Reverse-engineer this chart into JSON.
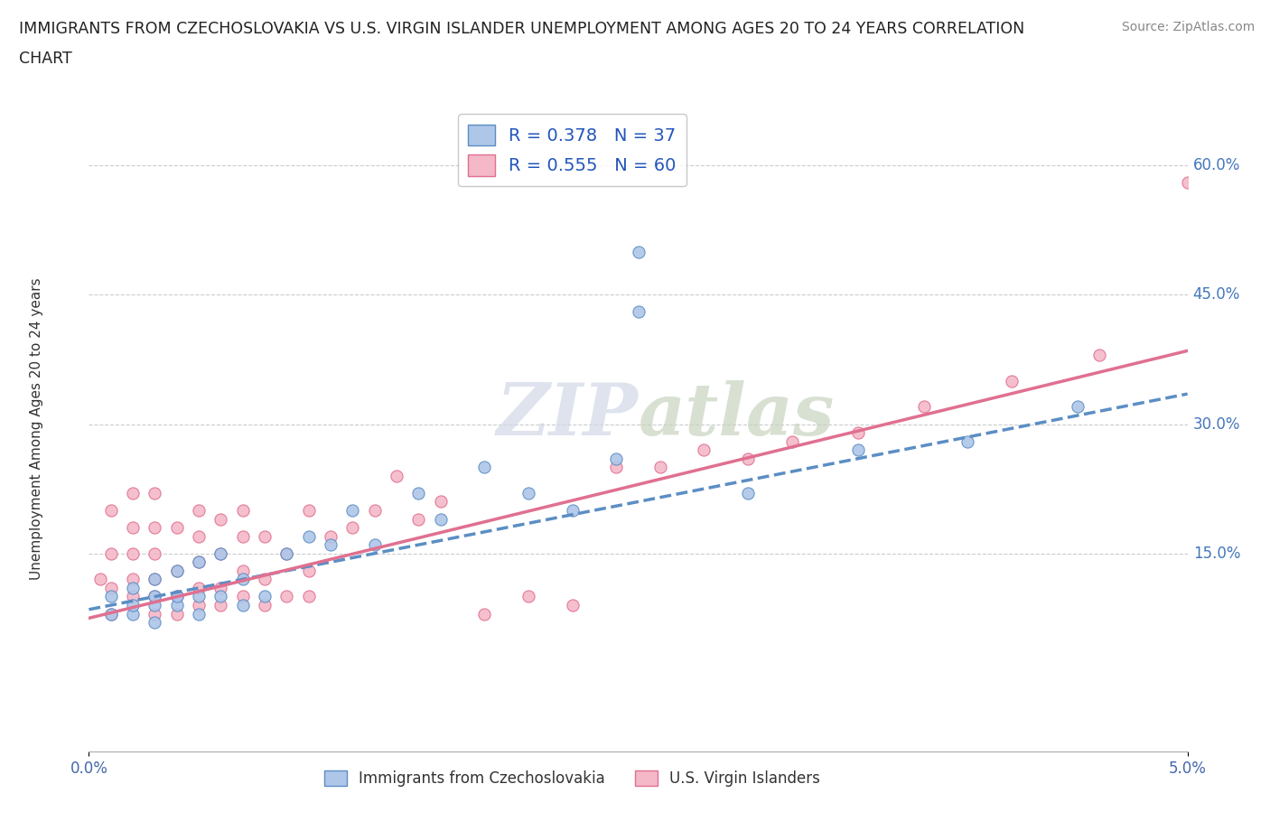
{
  "title_line1": "IMMIGRANTS FROM CZECHOSLOVAKIA VS U.S. VIRGIN ISLANDER UNEMPLOYMENT AMONG AGES 20 TO 24 YEARS CORRELATION",
  "title_line2": "CHART",
  "source": "Source: ZipAtlas.com",
  "ylabel": "Unemployment Among Ages 20 to 24 years",
  "yticks": [
    "15.0%",
    "30.0%",
    "45.0%",
    "60.0%"
  ],
  "ytick_vals": [
    0.15,
    0.3,
    0.45,
    0.6
  ],
  "xlim": [
    0.0,
    0.05
  ],
  "ylim": [
    -0.08,
    0.67
  ],
  "legend_labels": [
    "Immigrants from Czechoslovakia",
    "U.S. Virgin Islanders"
  ],
  "R_czech": 0.378,
  "N_czech": 37,
  "R_usvi": 0.555,
  "N_usvi": 60,
  "color_czech": "#aec6e8",
  "color_usvi": "#f4b8c8",
  "line_color_czech": "#5b8ec4",
  "line_color_usvi": "#e07090",
  "czech_x": [
    0.001,
    0.001,
    0.002,
    0.002,
    0.002,
    0.003,
    0.003,
    0.003,
    0.003,
    0.004,
    0.004,
    0.004,
    0.005,
    0.005,
    0.005,
    0.006,
    0.006,
    0.007,
    0.007,
    0.008,
    0.009,
    0.01,
    0.011,
    0.012,
    0.013,
    0.015,
    0.016,
    0.018,
    0.02,
    0.022,
    0.024,
    0.025,
    0.025,
    0.03,
    0.035,
    0.04,
    0.045
  ],
  "czech_y": [
    0.08,
    0.1,
    0.08,
    0.09,
    0.11,
    0.07,
    0.09,
    0.1,
    0.12,
    0.09,
    0.1,
    0.13,
    0.08,
    0.1,
    0.14,
    0.1,
    0.15,
    0.09,
    0.12,
    0.1,
    0.15,
    0.17,
    0.16,
    0.2,
    0.16,
    0.22,
    0.19,
    0.25,
    0.22,
    0.2,
    0.26,
    0.5,
    0.43,
    0.22,
    0.27,
    0.28,
    0.32
  ],
  "usvi_x": [
    0.0005,
    0.001,
    0.001,
    0.001,
    0.001,
    0.002,
    0.002,
    0.002,
    0.002,
    0.002,
    0.003,
    0.003,
    0.003,
    0.003,
    0.003,
    0.003,
    0.004,
    0.004,
    0.004,
    0.004,
    0.005,
    0.005,
    0.005,
    0.005,
    0.005,
    0.006,
    0.006,
    0.006,
    0.006,
    0.007,
    0.007,
    0.007,
    0.007,
    0.008,
    0.008,
    0.008,
    0.009,
    0.009,
    0.01,
    0.01,
    0.01,
    0.011,
    0.012,
    0.013,
    0.014,
    0.015,
    0.016,
    0.018,
    0.02,
    0.022,
    0.024,
    0.026,
    0.028,
    0.03,
    0.032,
    0.035,
    0.038,
    0.042,
    0.046,
    0.05
  ],
  "usvi_y": [
    0.12,
    0.08,
    0.11,
    0.15,
    0.2,
    0.1,
    0.12,
    0.15,
    0.18,
    0.22,
    0.08,
    0.1,
    0.12,
    0.15,
    0.18,
    0.22,
    0.08,
    0.1,
    0.13,
    0.18,
    0.09,
    0.11,
    0.14,
    0.17,
    0.2,
    0.09,
    0.11,
    0.15,
    0.19,
    0.1,
    0.13,
    0.17,
    0.2,
    0.09,
    0.12,
    0.17,
    0.1,
    0.15,
    0.1,
    0.13,
    0.2,
    0.17,
    0.18,
    0.2,
    0.24,
    0.19,
    0.21,
    0.08,
    0.1,
    0.09,
    0.25,
    0.25,
    0.27,
    0.26,
    0.28,
    0.29,
    0.32,
    0.35,
    0.38,
    0.58
  ],
  "line_czech_x0": 0.0,
  "line_czech_x1": 0.05,
  "line_czech_y0": 0.085,
  "line_czech_y1": 0.335,
  "line_usvi_x0": 0.0,
  "line_usvi_x1": 0.05,
  "line_usvi_y0": 0.075,
  "line_usvi_y1": 0.385
}
